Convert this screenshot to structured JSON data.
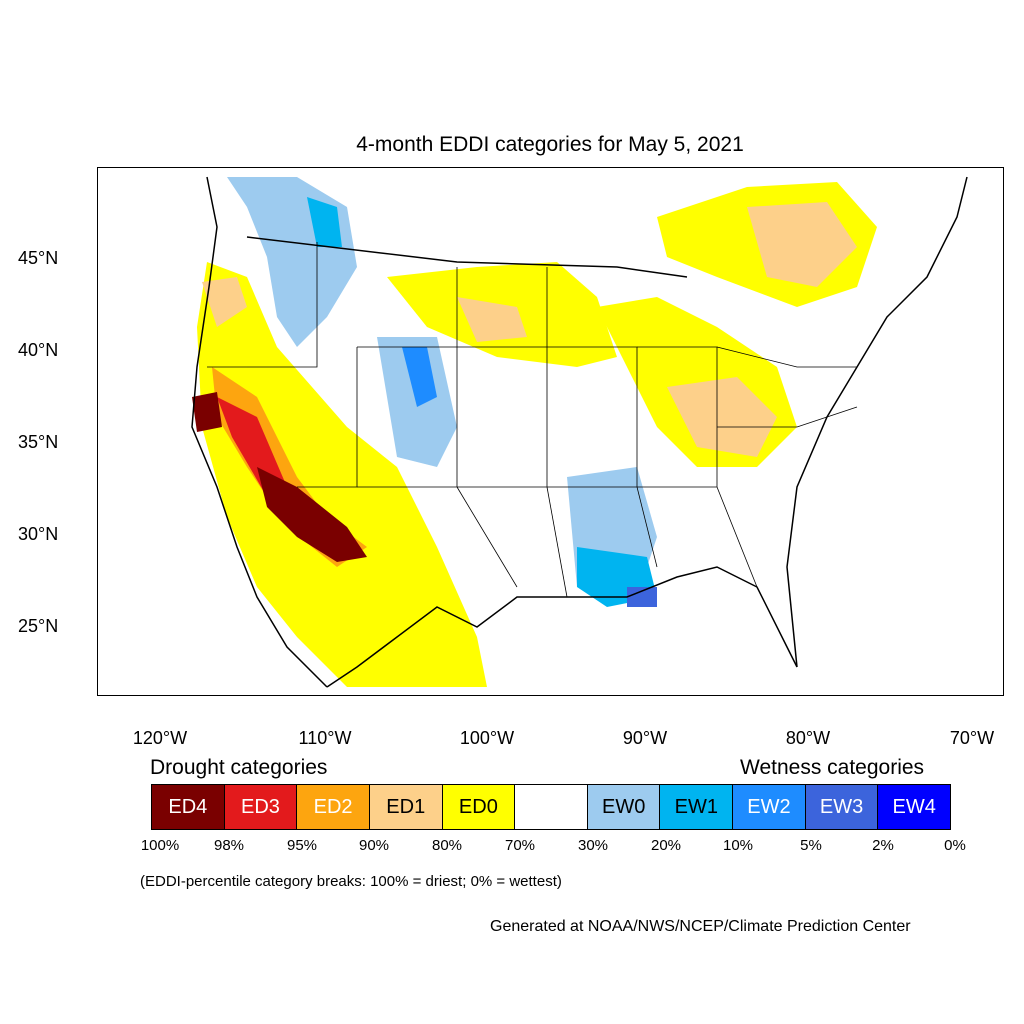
{
  "title": "4-month EDDI categories for May 5, 2021",
  "lat_axis": [
    "45°N",
    "40°N",
    "35°N",
    "30°N",
    "25°N"
  ],
  "lon_axis": [
    "120°W",
    "110°W",
    "100°W",
    "90°W",
    "80°W",
    "70°W"
  ],
  "legend": {
    "drought_heading": "Drought categories",
    "wetness_heading": "Wetness categories",
    "categories": [
      {
        "label": "ED4",
        "color": "#7a0000",
        "text_color": "#ffffff"
      },
      {
        "label": "ED3",
        "color": "#e31a1c",
        "text_color": "#ffffff"
      },
      {
        "label": "ED2",
        "color": "#fda50f",
        "text_color": "#ffffff"
      },
      {
        "label": "ED1",
        "color": "#fdd08a",
        "text_color": "#000000"
      },
      {
        "label": "ED0",
        "color": "#ffff00",
        "text_color": "#000000"
      },
      {
        "label": "",
        "color": "#ffffff",
        "text_color": "#000000"
      },
      {
        "label": "EW0",
        "color": "#9dcbef",
        "text_color": "#000000"
      },
      {
        "label": "EW1",
        "color": "#00b4f0",
        "text_color": "#000000"
      },
      {
        "label": "EW2",
        "color": "#1e8cff",
        "text_color": "#ffffff"
      },
      {
        "label": "EW3",
        "color": "#3c64dc",
        "text_color": "#ffffff"
      },
      {
        "label": "EW4",
        "color": "#0000ff",
        "text_color": "#ffffff"
      }
    ],
    "percentiles": [
      "100%",
      "98%",
      "95%",
      "90%",
      "80%",
      "70%",
      "30%",
      "20%",
      "10%",
      "5%",
      "2%",
      "0%"
    ]
  },
  "breaks_note": "(EDDI-percentile category breaks: 100% = driest; 0% = wettest)",
  "credit": "Generated at NOAA/NWS/NCEP/Climate Prediction Center"
}
